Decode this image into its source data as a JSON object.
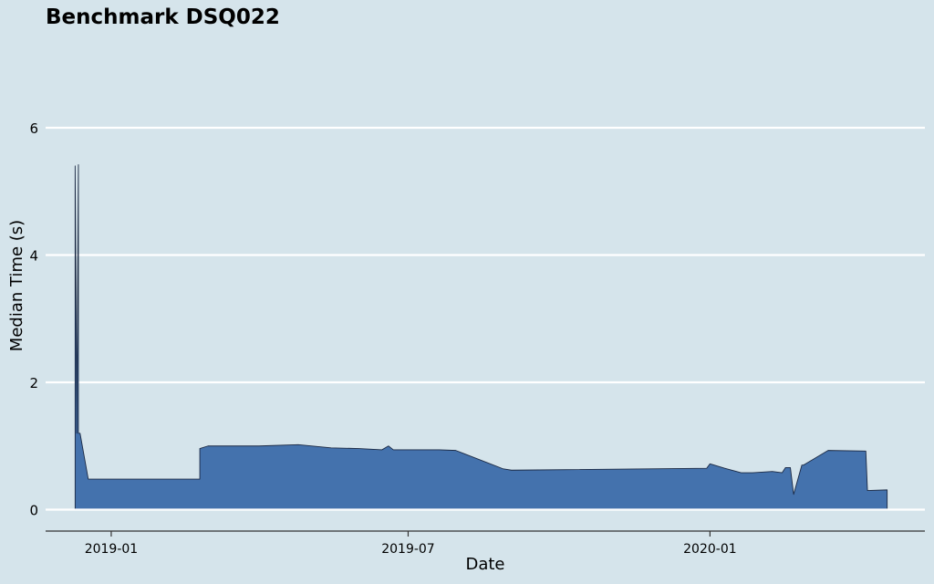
{
  "chart_data": {
    "type": "area",
    "title": "Benchmark DSQ022",
    "xlabel": "Date",
    "ylabel": "Median Time (s)",
    "x_ticks": [
      "2019-01",
      "2019-07",
      "2020-01"
    ],
    "y_ticks": [
      0,
      2,
      4,
      6
    ],
    "ylim": [
      0,
      6.3
    ],
    "xlim": [
      "2018-11-22",
      "2020-05-11"
    ],
    "grid": "horizontal",
    "legend": "none",
    "x": [
      "2018-12-10",
      "2018-12-10",
      "2018-12-11",
      "2018-12-11",
      "2018-12-12",
      "2018-12-12",
      "2018-12-13",
      "2018-12-18",
      "2019-01-15",
      "2019-02-20",
      "2019-02-24",
      "2019-02-24",
      "2019-03-01",
      "2019-04-01",
      "2019-04-25",
      "2019-05-15",
      "2019-06-01",
      "2019-06-15",
      "2019-06-19",
      "2019-06-22",
      "2019-06-25",
      "2019-07-01",
      "2019-07-20",
      "2019-07-30",
      "2019-08-28",
      "2019-09-02",
      "2019-12-30",
      "2020-01-01",
      "2020-01-10",
      "2020-01-20",
      "2020-01-27",
      "2020-02-08",
      "2020-02-14",
      "2020-02-16",
      "2020-02-19",
      "2020-02-21",
      "2020-02-26",
      "2020-02-27",
      "2020-03-13",
      "2020-04-05",
      "2020-04-06",
      "2020-04-18"
    ],
    "y": [
      1.2,
      5.4,
      1.6,
      1.2,
      5.42,
      1.2,
      1.2,
      0.48,
      0.48,
      0.48,
      0.48,
      0.96,
      1.0,
      1.0,
      1.02,
      0.97,
      0.96,
      0.94,
      1.0,
      0.94,
      0.94,
      0.94,
      0.94,
      0.93,
      0.64,
      0.62,
      0.65,
      0.72,
      0.65,
      0.58,
      0.58,
      0.6,
      0.58,
      0.66,
      0.66,
      0.24,
      0.7,
      0.7,
      0.93,
      0.92,
      0.3,
      0.31
    ]
  }
}
